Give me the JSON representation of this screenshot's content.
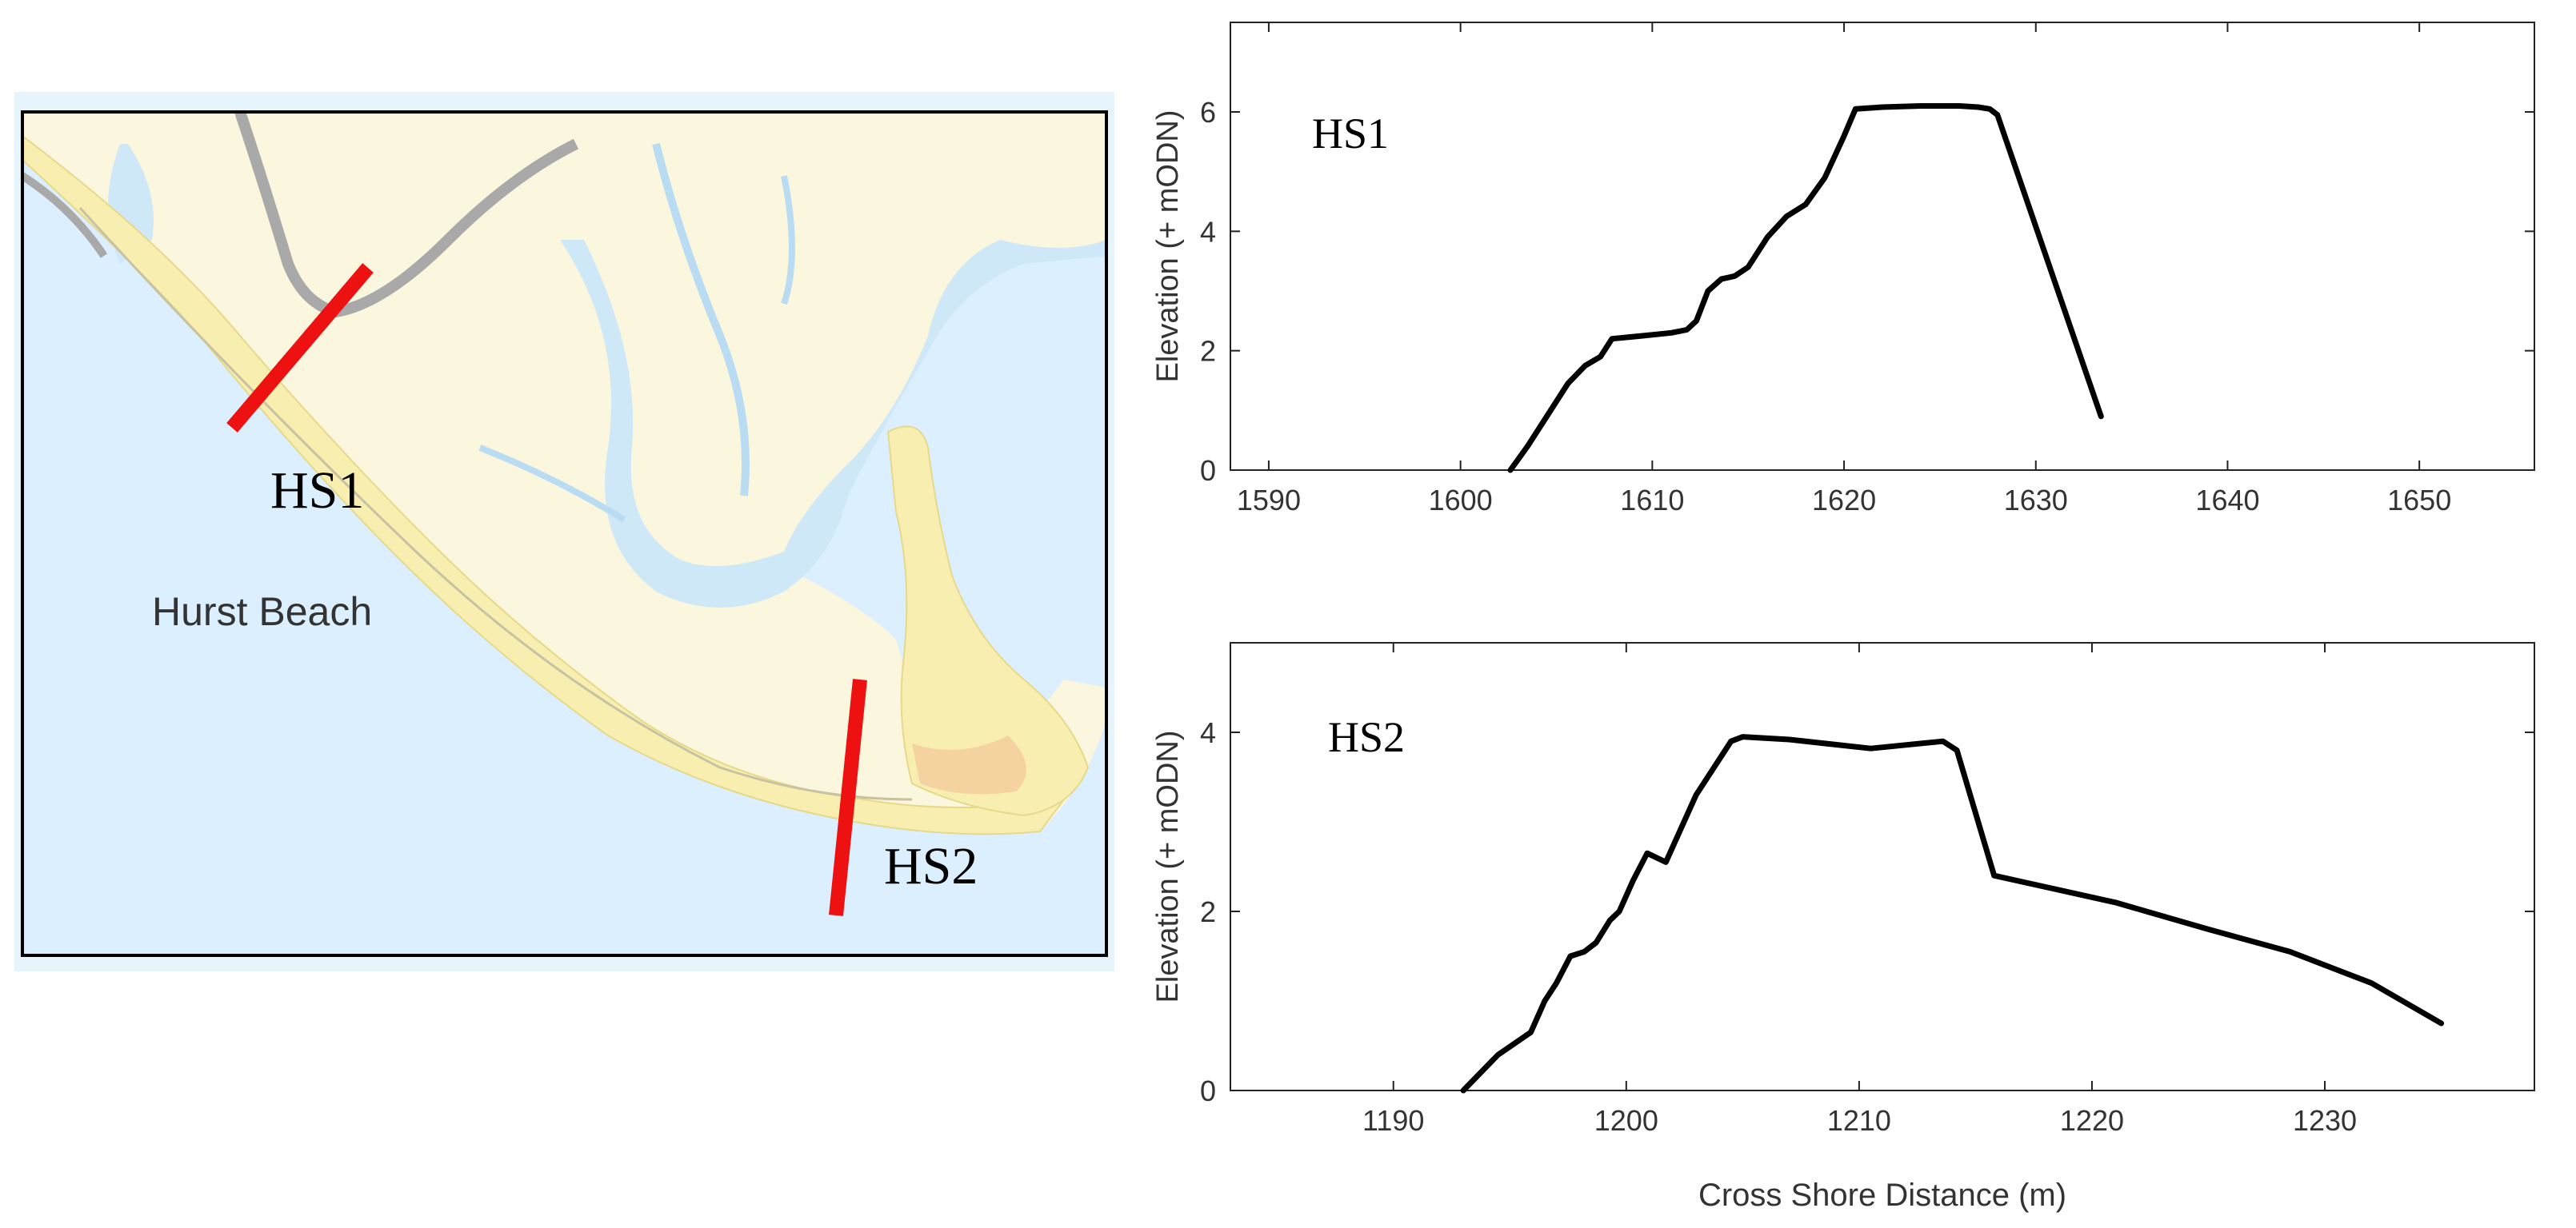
{
  "map": {
    "place_label": "Hurst Beach",
    "transects": [
      {
        "label": "HS1",
        "color": "#ee1111"
      },
      {
        "label": "HS2",
        "color": "#ee1111"
      }
    ],
    "colors": {
      "sea": "#dcefff",
      "land": "#fbf7df",
      "beach": "#f7eeb0",
      "water": "#cfe8f7",
      "road": "#a9a9a9",
      "frame": "#000000",
      "margin": "#e6f5fb"
    }
  },
  "chart_data": [
    {
      "type": "line",
      "title": "",
      "panel_label": "HS1",
      "xlabel": "",
      "ylabel": "Elevation (+ mODN)",
      "xlim": [
        1588,
        1656
      ],
      "ylim": [
        0,
        7.5
      ],
      "xticks": [
        1590,
        1600,
        1610,
        1620,
        1630,
        1640,
        1650
      ],
      "yticks": [
        0,
        2,
        4,
        6
      ],
      "series": [
        {
          "x": [
            1602.6,
            1603.5,
            1604.5,
            1605.6,
            1606.5,
            1607.3,
            1607.9,
            1609.5,
            1611.0,
            1611.8,
            1612.3,
            1612.9,
            1613.6,
            1614.3,
            1615.0,
            1616.0,
            1617.0,
            1618.0,
            1619.0,
            1620.0,
            1620.6,
            1622.0,
            1624.0,
            1626.0,
            1627.0,
            1627.6,
            1628.0,
            1633.4
          ],
          "y": [
            0.0,
            0.4,
            0.9,
            1.45,
            1.75,
            1.9,
            2.2,
            2.25,
            2.3,
            2.35,
            2.5,
            3.0,
            3.2,
            3.25,
            3.4,
            3.9,
            4.25,
            4.45,
            4.9,
            5.6,
            6.05,
            6.08,
            6.1,
            6.1,
            6.08,
            6.05,
            5.95,
            0.9
          ]
        }
      ]
    },
    {
      "type": "line",
      "title": "",
      "panel_label": "HS2",
      "xlabel": "Cross Shore Distance (m)",
      "ylabel": "Elevation (+ mODN)",
      "xlim": [
        1183,
        1239
      ],
      "ylim": [
        0,
        5
      ],
      "xticks": [
        1190,
        1200,
        1210,
        1220,
        1230
      ],
      "yticks": [
        0,
        2,
        4
      ],
      "series": [
        {
          "x": [
            1193.0,
            1194.5,
            1195.9,
            1196.5,
            1197.0,
            1197.6,
            1198.2,
            1198.7,
            1199.3,
            1199.7,
            1200.3,
            1200.9,
            1201.7,
            1203.0,
            1204.5,
            1205.0,
            1207.0,
            1210.5,
            1213.6,
            1214.2,
            1215.8,
            1221.0,
            1225.0,
            1228.5,
            1232.0,
            1235.0
          ],
          "y": [
            0.0,
            0.4,
            0.65,
            1.0,
            1.2,
            1.5,
            1.55,
            1.65,
            1.9,
            2.0,
            2.35,
            2.65,
            2.55,
            3.3,
            3.9,
            3.95,
            3.92,
            3.82,
            3.9,
            3.8,
            2.4,
            2.1,
            1.8,
            1.55,
            1.2,
            0.75
          ]
        }
      ]
    }
  ]
}
